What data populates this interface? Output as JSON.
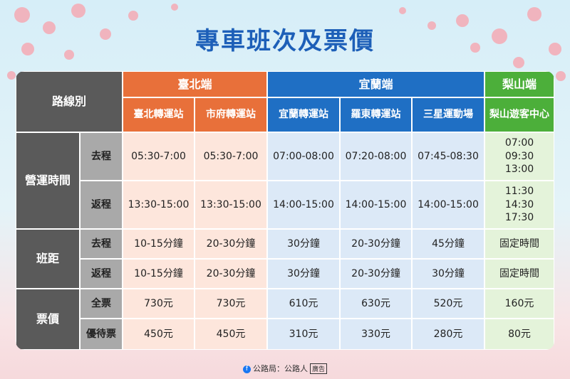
{
  "title": "專車班次及票價",
  "table": {
    "corner": "路線別",
    "groups": [
      {
        "name": "臺北端",
        "stations": [
          "臺北轉運站",
          "市府轉運站"
        ]
      },
      {
        "name": "宜蘭端",
        "stations": [
          "宜蘭轉運站",
          "羅東轉運站",
          "三星運動場"
        ]
      },
      {
        "name": "梨山端",
        "stations": [
          "梨山遊客中心"
        ]
      }
    ],
    "sections": [
      {
        "name": "營運時間",
        "rows": [
          {
            "label": "去程",
            "cells": [
              "05:30-7:00",
              "05:30-7:00",
              "07:00-08:00",
              "07:20-08:00",
              "07:45-08:30",
              [
                "07:00",
                "09:30",
                "13:00"
              ]
            ]
          },
          {
            "label": "返程",
            "cells": [
              "13:30-15:00",
              "13:30-15:00",
              "14:00-15:00",
              "14:00-15:00",
              "14:00-15:00",
              [
                "11:30",
                "14:30",
                "17:30"
              ]
            ]
          }
        ]
      },
      {
        "name": "班距",
        "rows": [
          {
            "label": "去程",
            "cells": [
              "10-15分鐘",
              "20-30分鐘",
              "30分鐘",
              "20-30分鐘",
              "45分鐘",
              "固定時間"
            ]
          },
          {
            "label": "返程",
            "cells": [
              "10-15分鐘",
              "20-30分鐘",
              "30分鐘",
              "20-30分鐘",
              "30分鐘",
              "固定時間"
            ]
          }
        ]
      },
      {
        "name": "票價",
        "rows": [
          {
            "label": "全票",
            "cells": [
              "730元",
              "730元",
              "610元",
              "630元",
              "520元",
              "160元"
            ]
          },
          {
            "label": "優待票",
            "cells": [
              "450元",
              "450元",
              "310元",
              "330元",
              "280元",
              "80元"
            ]
          }
        ]
      }
    ]
  },
  "footer": {
    "source": "公路局：公路人",
    "tag": "廣告"
  }
}
